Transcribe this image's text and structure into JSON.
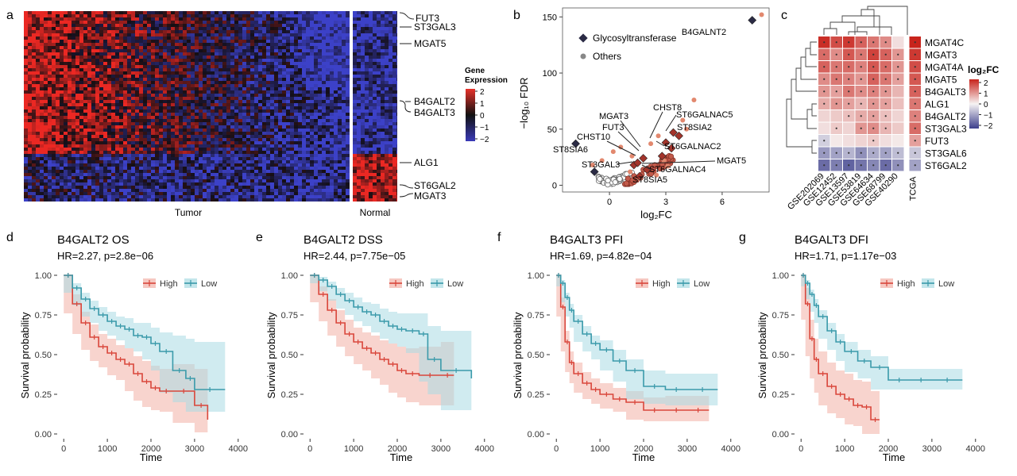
{
  "panels": {
    "a": {
      "letter": "a",
      "legend_title_1": "Gene",
      "legend_title_2": "Expression",
      "legend_ticks": [
        "2",
        "1",
        "0",
        "−1",
        "−2"
      ],
      "genes": [
        "FUT3",
        "ST3GAL3",
        "MGAT5",
        "B4GALT2",
        "B4GALT3",
        "ALG1",
        "ST6GAL2",
        "MGAT3"
      ],
      "group_tumor": "Tumor",
      "group_normal": "Normal"
    },
    "b": {
      "letter": "b"
    },
    "c": {
      "letter": "c",
      "legend_title": "log₂FC",
      "legend_ticks": [
        "2",
        "1",
        "0",
        "−1",
        "−2"
      ]
    },
    "d": {
      "letter": "d"
    },
    "e": {
      "letter": "e"
    },
    "f": {
      "letter": "f"
    },
    "g": {
      "letter": "g"
    }
  },
  "chart_data": [
    {
      "id": "b",
      "type": "scatter",
      "xlabel": "log₂FC",
      "ylabel": "−log₁₀ FDR",
      "xticks": [
        0,
        3,
        6
      ],
      "yticks": [
        0,
        50,
        100,
        150
      ],
      "xlim": [
        -2.5,
        8.5
      ],
      "ylim": [
        -6,
        158
      ],
      "legend": [
        {
          "name": "Glycosyltransferase",
          "marker": "diamond"
        },
        {
          "name": "Others",
          "marker": "circle"
        }
      ],
      "glycosyltransferase_points": [
        {
          "label": "B4GALNT2",
          "x": 7.6,
          "y": 147
        },
        {
          "label": "ST8SIA6",
          "x": -1.8,
          "y": 37
        },
        {
          "label": "ST3GAL3",
          "x": -0.8,
          "y": 12
        },
        {
          "label": "CHST10",
          "x": 1.3,
          "y": 18
        },
        {
          "label": "FUT3",
          "x": 1.5,
          "y": 20
        },
        {
          "label": "MGAT3",
          "x": 1.8,
          "y": 24
        },
        {
          "label": "CHST8",
          "x": 3.0,
          "y": 38
        },
        {
          "label": "ST6GALNAC5",
          "x": 3.4,
          "y": 47
        },
        {
          "label": "ST8SIA2",
          "x": 3.7,
          "y": 44
        },
        {
          "label": "ST6GALNAC2",
          "x": 3.3,
          "y": 33
        },
        {
          "label": "ST6GALNAC4",
          "x": 2.0,
          "y": 14
        },
        {
          "label": "ST8SIA5",
          "x": 1.6,
          "y": 8
        },
        {
          "label": "MGAT5",
          "x": 2.8,
          "y": 26
        }
      ],
      "label_texts": [
        "B4GALNT2",
        "CHST8",
        "ST6GALNAC5",
        "MGAT3",
        "ST8SIA2",
        "FUT3",
        "CHST10",
        "ST6GALNAC2",
        "ST8SIA6",
        "MGAT5",
        "ST3GAL3",
        "ST6GALNAC4",
        "ST8SIA5"
      ],
      "others_points": [
        {
          "x": 8.1,
          "y": 152
        },
        {
          "x": 4.5,
          "y": 76
        },
        {
          "x": 3.9,
          "y": 58
        },
        {
          "x": 4.1,
          "y": 50
        },
        {
          "x": 2.6,
          "y": 44
        },
        {
          "x": 2.2,
          "y": 37
        },
        {
          "x": 0.2,
          "y": 30
        },
        {
          "x": 0.6,
          "y": 34
        },
        {
          "x": 1.2,
          "y": 26
        },
        {
          "x": 2.9,
          "y": 22
        },
        {
          "x": 3.1,
          "y": 17
        },
        {
          "x": 2.5,
          "y": 9
        },
        {
          "x": 1.6,
          "y": 6
        },
        {
          "x": 1.1,
          "y": 12
        },
        {
          "x": -0.9,
          "y": 18
        },
        {
          "x": -0.4,
          "y": 22
        }
      ]
    },
    {
      "id": "c",
      "type": "heatmap",
      "rows": [
        "MGAT4C",
        "MGAT3",
        "MGAT4A",
        "MGAT5",
        "B4GALT3",
        "ALG1",
        "B4GALT2",
        "ST3GAL3",
        "FUT3",
        "ST3GAL6",
        "ST6GAL2"
      ],
      "columns": [
        "GSE202069",
        "GSE12452",
        "GSE13597",
        "GSE53819",
        "GSE64634",
        "GSE68799",
        "GSE40290",
        "TCGA"
      ],
      "values": [
        [
          1.9,
          1.6,
          1.8,
          1.4,
          1.2,
          1.0,
          0.2,
          2.0
        ],
        [
          1.3,
          1.0,
          1.5,
          1.2,
          1.7,
          1.4,
          0.9,
          1.8
        ],
        [
          1.4,
          1.2,
          1.3,
          1.1,
          1.5,
          1.3,
          0.9,
          1.6
        ],
        [
          1.0,
          1.2,
          1.1,
          0.9,
          1.4,
          1.2,
          0.8,
          1.5
        ],
        [
          0.9,
          0.8,
          1.2,
          1.0,
          1.1,
          0.9,
          0.6,
          1.4
        ],
        [
          0.7,
          0.9,
          0.8,
          0.6,
          0.9,
          0.8,
          0.5,
          1.2
        ],
        [
          0.3,
          0.4,
          0.5,
          0.7,
          0.8,
          0.5,
          0.3,
          1.1
        ],
        [
          0.2,
          0.4,
          0.3,
          0.9,
          1.0,
          0.6,
          0.4,
          1.3
        ],
        [
          -0.4,
          0.1,
          0.2,
          0.3,
          0.4,
          0.2,
          0.1,
          0.8
        ],
        [
          -1.0,
          -0.9,
          -0.7,
          -1.1,
          -0.8,
          -0.9,
          -0.6,
          -0.5
        ],
        [
          -1.5,
          -1.3,
          -1.6,
          -1.4,
          -1.2,
          -1.5,
          -1.1,
          -0.9
        ]
      ],
      "significant": [
        [
          1,
          1,
          1,
          1,
          1,
          1,
          0,
          1
        ],
        [
          1,
          1,
          1,
          1,
          1,
          1,
          1,
          1
        ],
        [
          1,
          1,
          1,
          1,
          1,
          1,
          1,
          1
        ],
        [
          1,
          1,
          1,
          1,
          1,
          1,
          1,
          1
        ],
        [
          1,
          1,
          1,
          1,
          1,
          1,
          0,
          1
        ],
        [
          1,
          1,
          1,
          1,
          1,
          1,
          0,
          1
        ],
        [
          0,
          0,
          1,
          1,
          1,
          1,
          0,
          1
        ],
        [
          0,
          1,
          0,
          1,
          1,
          1,
          0,
          1
        ],
        [
          1,
          0,
          0,
          0,
          1,
          0,
          0,
          1
        ],
        [
          1,
          1,
          1,
          1,
          1,
          1,
          1,
          1
        ],
        [
          1,
          1,
          1,
          1,
          1,
          1,
          1,
          1
        ]
      ],
      "scale": [
        -2,
        2
      ]
    },
    {
      "id": "d",
      "type": "line",
      "title": "B4GALT2 OS",
      "subtitle": "HR=2.27, p=2.8e−06",
      "xlabel": "Time",
      "ylabel": "Survival probability",
      "xticks": [
        0,
        1000,
        2000,
        3000,
        4000
      ],
      "yticks": [
        0,
        0.25,
        0.5,
        0.75,
        1
      ],
      "yticklabels": [
        "0.00",
        "0.25",
        "0.50",
        "0.75",
        "1.00"
      ],
      "xlim": [
        -150,
        4150
      ],
      "ylim": [
        -0.03,
        1.03
      ],
      "series": [
        {
          "name": "High",
          "color": "#d9463b",
          "band": "#f2b1a6",
          "x": [
            0,
            200,
            400,
            600,
            800,
            1000,
            1200,
            1400,
            1600,
            1800,
            2000,
            2200,
            2500,
            3000,
            3300
          ],
          "y": [
            1.0,
            0.82,
            0.7,
            0.61,
            0.55,
            0.51,
            0.47,
            0.44,
            0.38,
            0.33,
            0.29,
            0.27,
            0.27,
            0.18,
            0.09
          ],
          "lower": [
            1.0,
            0.76,
            0.63,
            0.53,
            0.46,
            0.42,
            0.37,
            0.34,
            0.27,
            0.21,
            0.17,
            0.15,
            0.14,
            0.07,
            0.01
          ],
          "upper": [
            1.0,
            0.88,
            0.77,
            0.69,
            0.63,
            0.6,
            0.56,
            0.54,
            0.49,
            0.46,
            0.43,
            0.41,
            0.44,
            0.41,
            0.41
          ]
        },
        {
          "name": "Low",
          "color": "#3a9aaa",
          "band": "#a9dbe3",
          "x": [
            0,
            200,
            400,
            600,
            800,
            1000,
            1200,
            1400,
            1600,
            1800,
            2000,
            2200,
            2500,
            2800,
            3000,
            3700
          ],
          "y": [
            1.0,
            0.92,
            0.85,
            0.79,
            0.75,
            0.71,
            0.68,
            0.66,
            0.62,
            0.61,
            0.57,
            0.52,
            0.4,
            0.35,
            0.28,
            0.28
          ],
          "lower": [
            1.0,
            0.89,
            0.81,
            0.74,
            0.7,
            0.65,
            0.62,
            0.59,
            0.54,
            0.52,
            0.47,
            0.4,
            0.26,
            0.2,
            0.14,
            0.14
          ],
          "upper": [
            1.0,
            0.95,
            0.89,
            0.84,
            0.8,
            0.77,
            0.74,
            0.73,
            0.7,
            0.7,
            0.67,
            0.64,
            0.62,
            0.6,
            0.58,
            0.56
          ]
        }
      ]
    },
    {
      "id": "e",
      "type": "line",
      "title": "B4GALT2 DSS",
      "subtitle": "HR=2.44, p=7.75e−05",
      "xlabel": "Time",
      "ylabel": "Survival probability",
      "xticks": [
        0,
        1000,
        2000,
        3000,
        4000
      ],
      "yticks": [
        0,
        0.25,
        0.5,
        0.75,
        1
      ],
      "yticklabels": [
        "0.00",
        "0.25",
        "0.50",
        "0.75",
        "1.00"
      ],
      "xlim": [
        -150,
        4150
      ],
      "ylim": [
        -0.03,
        1.03
      ],
      "series": [
        {
          "name": "High",
          "color": "#d9463b",
          "band": "#f2b1a6",
          "x": [
            0,
            200,
            400,
            600,
            800,
            1000,
            1200,
            1400,
            1600,
            1800,
            2000,
            2200,
            2500,
            3000,
            3300
          ],
          "y": [
            1.0,
            0.88,
            0.78,
            0.7,
            0.63,
            0.58,
            0.54,
            0.51,
            0.47,
            0.44,
            0.4,
            0.38,
            0.37,
            0.37,
            0.37
          ],
          "lower": [
            1.0,
            0.83,
            0.71,
            0.62,
            0.55,
            0.49,
            0.44,
            0.4,
            0.35,
            0.31,
            0.26,
            0.23,
            0.2,
            0.18,
            0.18
          ],
          "upper": [
            1.0,
            0.93,
            0.85,
            0.78,
            0.72,
            0.67,
            0.64,
            0.62,
            0.59,
            0.57,
            0.55,
            0.54,
            0.55,
            0.58,
            0.58
          ]
        },
        {
          "name": "Low",
          "color": "#3a9aaa",
          "band": "#a9dbe3",
          "x": [
            0,
            200,
            400,
            600,
            800,
            1000,
            1200,
            1400,
            1600,
            1800,
            2000,
            2200,
            2500,
            2700,
            3000,
            3700
          ],
          "y": [
            1.0,
            0.97,
            0.93,
            0.88,
            0.84,
            0.8,
            0.77,
            0.75,
            0.71,
            0.68,
            0.66,
            0.65,
            0.63,
            0.47,
            0.4,
            0.35
          ],
          "lower": [
            1.0,
            0.95,
            0.9,
            0.84,
            0.79,
            0.75,
            0.71,
            0.68,
            0.64,
            0.6,
            0.57,
            0.55,
            0.51,
            0.33,
            0.25,
            0.15
          ],
          "upper": [
            1.0,
            0.99,
            0.96,
            0.92,
            0.89,
            0.86,
            0.83,
            0.82,
            0.79,
            0.77,
            0.76,
            0.76,
            0.76,
            0.68,
            0.65,
            0.6
          ]
        }
      ]
    },
    {
      "id": "f",
      "type": "line",
      "title": "B4GALT3 PFI",
      "subtitle": "HR=1.69, p=4.82e−04",
      "xlabel": "Time",
      "ylabel": "Survival probability",
      "xticks": [
        0,
        1000,
        2000,
        3000,
        4000
      ],
      "yticks": [
        0,
        0.25,
        0.5,
        0.75,
        1
      ],
      "yticklabels": [
        "0.00",
        "0.25",
        "0.50",
        "0.75",
        "1.00"
      ],
      "xlim": [
        -150,
        4150
      ],
      "ylim": [
        -0.03,
        1.03
      ],
      "series": [
        {
          "name": "High",
          "color": "#d9463b",
          "band": "#f2b1a6",
          "x": [
            0,
            100,
            200,
            300,
            400,
            600,
            800,
            1000,
            1300,
            1600,
            2000,
            2500,
            3000,
            3500
          ],
          "y": [
            1.0,
            0.8,
            0.58,
            0.45,
            0.38,
            0.32,
            0.28,
            0.25,
            0.22,
            0.2,
            0.15,
            0.15,
            0.15,
            0.15
          ],
          "lower": [
            1.0,
            0.74,
            0.52,
            0.39,
            0.32,
            0.26,
            0.22,
            0.19,
            0.16,
            0.14,
            0.09,
            0.08,
            0.08,
            0.08
          ],
          "upper": [
            1.0,
            0.86,
            0.65,
            0.52,
            0.45,
            0.39,
            0.35,
            0.32,
            0.29,
            0.27,
            0.23,
            0.24,
            0.24,
            0.24
          ]
        },
        {
          "name": "Low",
          "color": "#3a9aaa",
          "band": "#a9dbe3",
          "x": [
            0,
            100,
            200,
            300,
            400,
            600,
            800,
            1000,
            1300,
            1600,
            2000,
            2500,
            3000,
            3700
          ],
          "y": [
            1.0,
            0.95,
            0.86,
            0.78,
            0.71,
            0.63,
            0.57,
            0.53,
            0.46,
            0.4,
            0.3,
            0.28,
            0.28,
            0.28
          ],
          "lower": [
            1.0,
            0.93,
            0.83,
            0.74,
            0.67,
            0.58,
            0.52,
            0.47,
            0.4,
            0.33,
            0.22,
            0.19,
            0.18,
            0.18
          ],
          "upper": [
            1.0,
            0.97,
            0.89,
            0.82,
            0.75,
            0.68,
            0.62,
            0.59,
            0.53,
            0.47,
            0.4,
            0.38,
            0.38,
            0.4
          ]
        }
      ]
    },
    {
      "id": "g",
      "type": "line",
      "title": "B4GALT3 DFI",
      "subtitle": "HR=1.71, p=1.17e−03",
      "xlabel": "Time",
      "ylabel": "Survival probability",
      "xticks": [
        0,
        1000,
        2000,
        3000,
        4000
      ],
      "yticks": [
        0,
        0.25,
        0.5,
        0.75,
        1
      ],
      "yticklabels": [
        "0.00",
        "0.25",
        "0.50",
        "0.75",
        "1.00"
      ],
      "xlim": [
        -150,
        4150
      ],
      "ylim": [
        -0.03,
        1.03
      ],
      "series": [
        {
          "name": "High",
          "color": "#d9463b",
          "band": "#f2b1a6",
          "x": [
            0,
            100,
            200,
            300,
            400,
            600,
            800,
            1000,
            1200,
            1400,
            1600,
            1800
          ],
          "y": [
            1.0,
            0.82,
            0.6,
            0.47,
            0.38,
            0.3,
            0.25,
            0.22,
            0.18,
            0.17,
            0.09,
            0.09
          ],
          "lower": [
            1.0,
            0.72,
            0.49,
            0.35,
            0.26,
            0.18,
            0.13,
            0.1,
            0.06,
            0.05,
            0.0,
            0.0
          ],
          "upper": [
            1.0,
            0.92,
            0.72,
            0.6,
            0.52,
            0.45,
            0.4,
            0.38,
            0.34,
            0.33,
            0.27,
            0.27
          ]
        },
        {
          "name": "Low",
          "color": "#3a9aaa",
          "band": "#a9dbe3",
          "x": [
            0,
            100,
            200,
            300,
            400,
            600,
            800,
            1000,
            1300,
            1600,
            2000,
            2500,
            3000,
            3700
          ],
          "y": [
            1.0,
            0.95,
            0.88,
            0.81,
            0.74,
            0.65,
            0.58,
            0.52,
            0.46,
            0.42,
            0.34,
            0.34,
            0.34,
            0.34
          ],
          "lower": [
            1.0,
            0.93,
            0.85,
            0.77,
            0.7,
            0.6,
            0.53,
            0.46,
            0.39,
            0.35,
            0.28,
            0.28,
            0.28,
            0.28
          ],
          "upper": [
            1.0,
            0.97,
            0.91,
            0.85,
            0.78,
            0.7,
            0.63,
            0.58,
            0.53,
            0.49,
            0.41,
            0.41,
            0.41,
            0.41
          ]
        }
      ]
    }
  ]
}
